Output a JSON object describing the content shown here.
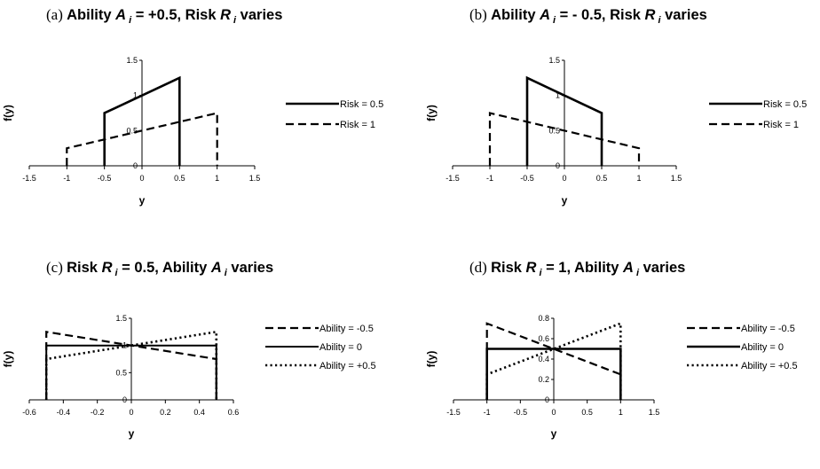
{
  "chart_data": [
    {
      "panel": "a",
      "type": "line",
      "title": {
        "prefix": "(a)",
        "pre": "Ability ",
        "var1": "A",
        "sub1": "i",
        "mid": " = +0.5, Risk ",
        "var2": "R",
        "sub2": "i",
        "post": " varies"
      },
      "xlabel": "y",
      "ylabel": "f(y)",
      "xlim": [
        -1.5,
        1.5
      ],
      "ylim": [
        0,
        1.5
      ],
      "xticks": [
        "-1.5",
        "-1",
        "-0.5",
        "0",
        "0.5",
        "1",
        "1.5"
      ],
      "yticks": [
        "0",
        "0.5",
        "1",
        "1.5"
      ],
      "legend_position": "right",
      "series": [
        {
          "name": "Risk = 0.5",
          "style": "solid",
          "x": [
            -0.5,
            -0.5,
            0.5,
            0.5
          ],
          "y": [
            0,
            0.75,
            1.25,
            0
          ]
        },
        {
          "name": "Risk = 1",
          "style": "dashed",
          "x": [
            -1,
            -1,
            1,
            1
          ],
          "y": [
            0,
            0.25,
            0.75,
            0
          ]
        }
      ]
    },
    {
      "panel": "b",
      "type": "line",
      "title": {
        "prefix": "(b)",
        "pre": "Ability ",
        "var1": "A",
        "sub1": "i",
        "mid": " = - 0.5, Risk ",
        "var2": "R",
        "sub2": "i",
        "post": " varies"
      },
      "xlabel": "y",
      "ylabel": "f(y)",
      "xlim": [
        -1.5,
        1.5
      ],
      "ylim": [
        0,
        1.5
      ],
      "xticks": [
        "-1.5",
        "-1",
        "-0.5",
        "0",
        "0.5",
        "1",
        "1.5"
      ],
      "yticks": [
        "0",
        "0.5",
        "1",
        "1.5"
      ],
      "legend_position": "right",
      "series": [
        {
          "name": "Risk = 0.5",
          "style": "solid",
          "x": [
            -0.5,
            -0.5,
            0.5,
            0.5
          ],
          "y": [
            0,
            1.25,
            0.75,
            0
          ]
        },
        {
          "name": "Risk = 1",
          "style": "dashed",
          "x": [
            -1,
            -1,
            1,
            1
          ],
          "y": [
            0,
            0.75,
            0.25,
            0
          ]
        }
      ]
    },
    {
      "panel": "c",
      "type": "line",
      "title": {
        "prefix": "(c)",
        "pre": "Risk ",
        "var1": "R",
        "sub1": "i",
        "mid": " = 0.5, Ability ",
        "var2": "A",
        "sub2": "i",
        "post": " varies"
      },
      "xlabel": "y",
      "ylabel": "f(y)",
      "xlim": [
        -0.6,
        0.6
      ],
      "ylim": [
        0,
        1.5
      ],
      "xticks": [
        "-0.6",
        "-0.4",
        "-0.2",
        "0",
        "0.2",
        "0.4",
        "0.6"
      ],
      "yticks": [
        "0",
        "0.5",
        "1",
        "1.5"
      ],
      "legend_position": "right",
      "series": [
        {
          "name": "Ability = -0.5",
          "style": "dashed",
          "x": [
            -0.5,
            -0.5,
            0.5,
            0.5
          ],
          "y": [
            0,
            1.25,
            0.75,
            0
          ]
        },
        {
          "name": "Ability = 0",
          "style": "solid-thin",
          "x": [
            -0.5,
            -0.5,
            0.5,
            0.5
          ],
          "y": [
            0,
            1,
            1,
            0
          ]
        },
        {
          "name": "Ability = +0.5",
          "style": "dotted",
          "x": [
            -0.5,
            -0.5,
            0.5,
            0.5
          ],
          "y": [
            0,
            0.75,
            1.25,
            0
          ]
        }
      ]
    },
    {
      "panel": "d",
      "type": "line",
      "title": {
        "prefix": "(d)",
        "pre": "Risk ",
        "var1": "R",
        "sub1": "i",
        "mid": " = 1, Ability ",
        "var2": "A",
        "sub2": "i",
        "post": " varies"
      },
      "xlabel": "y",
      "ylabel": "f(y)",
      "xlim": [
        -1.5,
        1.5
      ],
      "ylim": [
        0,
        0.8
      ],
      "xticks": [
        "-1.5",
        "-1",
        "-0.5",
        "0",
        "0.5",
        "1",
        "1.5"
      ],
      "yticks": [
        "0",
        "0.2",
        "0.4",
        "0.6",
        "0.8"
      ],
      "legend_position": "right",
      "series": [
        {
          "name": "Ability = -0.5",
          "style": "dashed",
          "x": [
            -1,
            -1,
            1,
            1
          ],
          "y": [
            0,
            0.75,
            0.25,
            0
          ]
        },
        {
          "name": "Ability = 0",
          "style": "solid",
          "x": [
            -1,
            -1,
            1,
            1
          ],
          "y": [
            0,
            0.5,
            0.5,
            0
          ]
        },
        {
          "name": "Ability = +0.5",
          "style": "dotted",
          "x": [
            -1,
            -1,
            1,
            1
          ],
          "y": [
            0,
            0.25,
            0.75,
            0
          ]
        }
      ]
    }
  ]
}
